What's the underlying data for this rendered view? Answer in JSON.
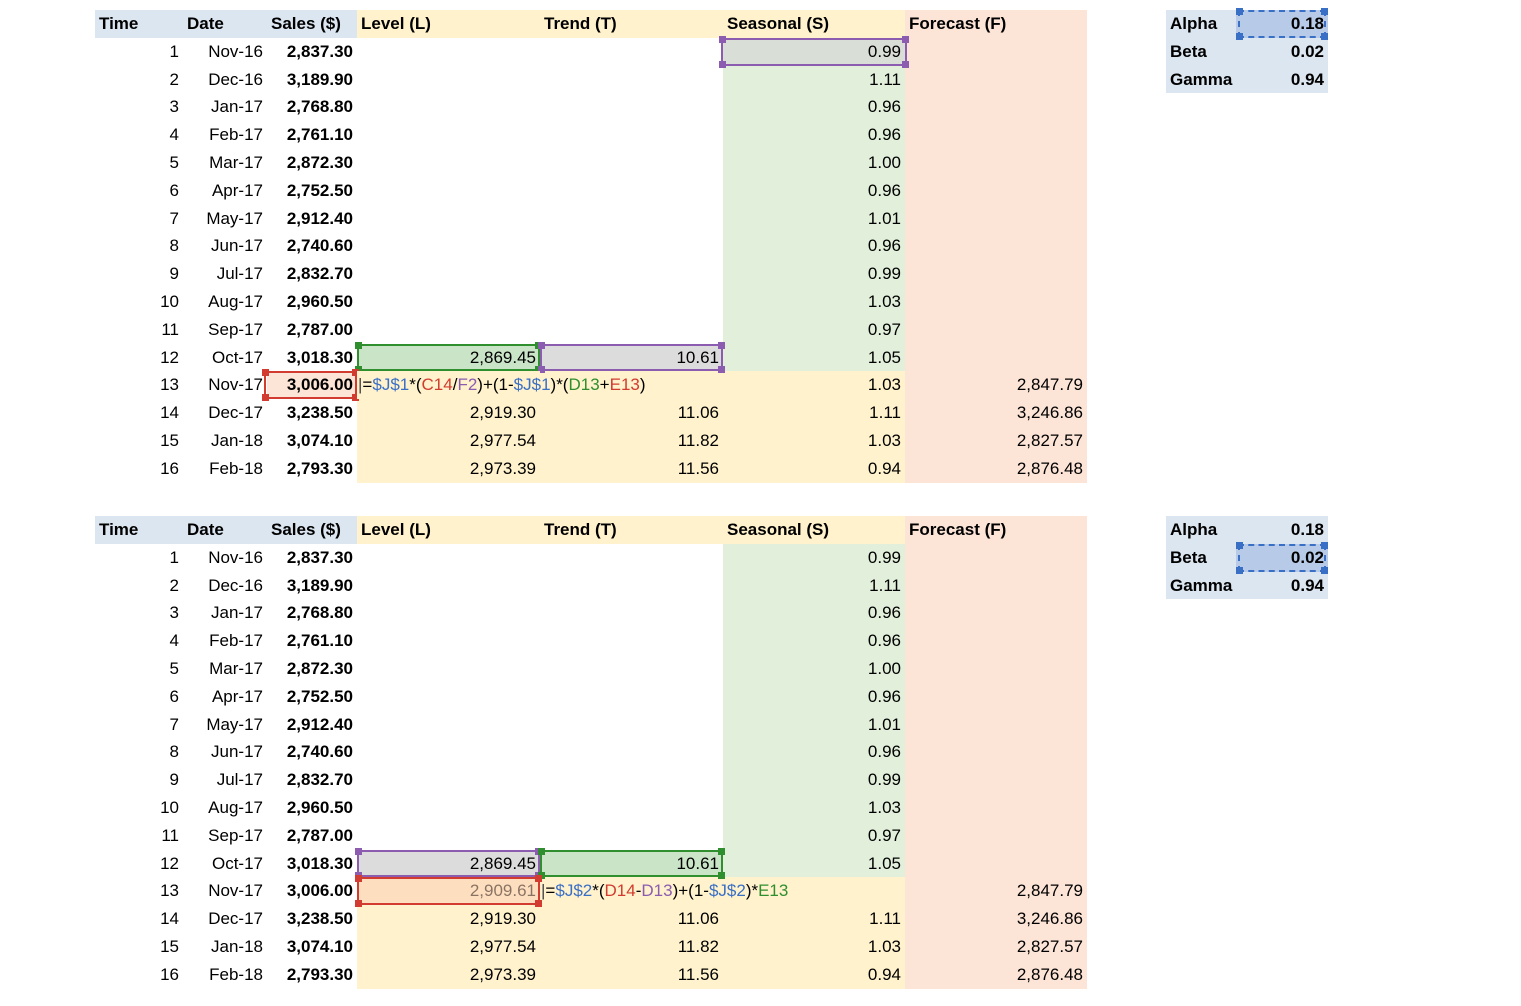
{
  "headers": {
    "time": "Time",
    "date": "Date",
    "sales": "Sales ($)",
    "level": "Level (L)",
    "trend": "Trend (T)",
    "seasonal": "Seasonal (S)",
    "forecast": "Forecast (F)"
  },
  "params": [
    {
      "label": "Alpha",
      "value": "0.18"
    },
    {
      "label": "Beta",
      "value": "0.02"
    },
    {
      "label": "Gamma",
      "value": "0.94"
    }
  ],
  "colors": {
    "header_blue": "#dce6f1",
    "level_yellow": "#fff2cc",
    "seasonal_green": "#e2efda",
    "forecast_salmon": "#fce4d6",
    "ref_blue": "#3a6fc6",
    "ref_red": "#d13b30",
    "ref_purple": "#8b5cb0",
    "ref_green": "#2f8f2f"
  },
  "sheets": [
    {
      "rows": [
        {
          "time": "1",
          "date": "Nov-16",
          "sales": "2,837.30",
          "level": "",
          "trend": "",
          "seasonal": "0.99",
          "forecast": ""
        },
        {
          "time": "2",
          "date": "Dec-16",
          "sales": "3,189.90",
          "level": "",
          "trend": "",
          "seasonal": "1.11",
          "forecast": ""
        },
        {
          "time": "3",
          "date": "Jan-17",
          "sales": "2,768.80",
          "level": "",
          "trend": "",
          "seasonal": "0.96",
          "forecast": ""
        },
        {
          "time": "4",
          "date": "Feb-17",
          "sales": "2,761.10",
          "level": "",
          "trend": "",
          "seasonal": "0.96",
          "forecast": ""
        },
        {
          "time": "5",
          "date": "Mar-17",
          "sales": "2,872.30",
          "level": "",
          "trend": "",
          "seasonal": "1.00",
          "forecast": ""
        },
        {
          "time": "6",
          "date": "Apr-17",
          "sales": "2,752.50",
          "level": "",
          "trend": "",
          "seasonal": "0.96",
          "forecast": ""
        },
        {
          "time": "7",
          "date": "May-17",
          "sales": "2,912.40",
          "level": "",
          "trend": "",
          "seasonal": "1.01",
          "forecast": ""
        },
        {
          "time": "8",
          "date": "Jun-17",
          "sales": "2,740.60",
          "level": "",
          "trend": "",
          "seasonal": "0.96",
          "forecast": ""
        },
        {
          "time": "9",
          "date": "Jul-17",
          "sales": "2,832.70",
          "level": "",
          "trend": "",
          "seasonal": "0.99",
          "forecast": ""
        },
        {
          "time": "10",
          "date": "Aug-17",
          "sales": "2,960.50",
          "level": "",
          "trend": "",
          "seasonal": "1.03",
          "forecast": ""
        },
        {
          "time": "11",
          "date": "Sep-17",
          "sales": "2,787.00",
          "level": "",
          "trend": "",
          "seasonal": "0.97",
          "forecast": ""
        },
        {
          "time": "12",
          "date": "Oct-17",
          "sales": "3,018.30",
          "level": "2,869.45",
          "trend": "10.61",
          "seasonal": "1.05",
          "forecast": ""
        },
        {
          "time": "13",
          "date": "Nov-17",
          "sales": "3,006.00",
          "level": "",
          "trend": "",
          "seasonal": "1.03",
          "forecast": "2,847.79"
        },
        {
          "time": "14",
          "date": "Dec-17",
          "sales": "3,238.50",
          "level": "2,919.30",
          "trend": "11.06",
          "seasonal": "1.11",
          "forecast": "3,246.86"
        },
        {
          "time": "15",
          "date": "Jan-18",
          "sales": "3,074.10",
          "level": "2,977.54",
          "trend": "11.82",
          "seasonal": "1.03",
          "forecast": "2,827.57"
        },
        {
          "time": "16",
          "date": "Feb-18",
          "sales": "2,793.30",
          "level": "2,973.39",
          "trend": "11.56",
          "seasonal": "0.94",
          "forecast": "2,876.48"
        }
      ],
      "formula": {
        "cell": "level-row-13",
        "tokens": [
          {
            "t": "=",
            "c": "black"
          },
          {
            "t": "$J$1",
            "c": "blue"
          },
          {
            "t": "*(",
            "c": "black"
          },
          {
            "t": "C14",
            "c": "red"
          },
          {
            "t": "/",
            "c": "black"
          },
          {
            "t": "F2",
            "c": "purple"
          },
          {
            "t": ")+(1-",
            "c": "black"
          },
          {
            "t": "$J$1",
            "c": "blue"
          },
          {
            "t": ")*(",
            "c": "black"
          },
          {
            "t": "D13",
            "c": "green"
          },
          {
            "t": "+",
            "c": "black"
          },
          {
            "t": "E13",
            "c": "red"
          },
          {
            "t": ")",
            "c": "black"
          }
        ]
      }
    },
    {
      "rows": [
        {
          "time": "1",
          "date": "Nov-16",
          "sales": "2,837.30",
          "level": "",
          "trend": "",
          "seasonal": "0.99",
          "forecast": ""
        },
        {
          "time": "2",
          "date": "Dec-16",
          "sales": "3,189.90",
          "level": "",
          "trend": "",
          "seasonal": "1.11",
          "forecast": ""
        },
        {
          "time": "3",
          "date": "Jan-17",
          "sales": "2,768.80",
          "level": "",
          "trend": "",
          "seasonal": "0.96",
          "forecast": ""
        },
        {
          "time": "4",
          "date": "Feb-17",
          "sales": "2,761.10",
          "level": "",
          "trend": "",
          "seasonal": "0.96",
          "forecast": ""
        },
        {
          "time": "5",
          "date": "Mar-17",
          "sales": "2,872.30",
          "level": "",
          "trend": "",
          "seasonal": "1.00",
          "forecast": ""
        },
        {
          "time": "6",
          "date": "Apr-17",
          "sales": "2,752.50",
          "level": "",
          "trend": "",
          "seasonal": "0.96",
          "forecast": ""
        },
        {
          "time": "7",
          "date": "May-17",
          "sales": "2,912.40",
          "level": "",
          "trend": "",
          "seasonal": "1.01",
          "forecast": ""
        },
        {
          "time": "8",
          "date": "Jun-17",
          "sales": "2,740.60",
          "level": "",
          "trend": "",
          "seasonal": "0.96",
          "forecast": ""
        },
        {
          "time": "9",
          "date": "Jul-17",
          "sales": "2,832.70",
          "level": "",
          "trend": "",
          "seasonal": "0.99",
          "forecast": ""
        },
        {
          "time": "10",
          "date": "Aug-17",
          "sales": "2,960.50",
          "level": "",
          "trend": "",
          "seasonal": "1.03",
          "forecast": ""
        },
        {
          "time": "11",
          "date": "Sep-17",
          "sales": "2,787.00",
          "level": "",
          "trend": "",
          "seasonal": "0.97",
          "forecast": ""
        },
        {
          "time": "12",
          "date": "Oct-17",
          "sales": "3,018.30",
          "level": "2,869.45",
          "trend": "10.61",
          "seasonal": "1.05",
          "forecast": ""
        },
        {
          "time": "13",
          "date": "Nov-17",
          "sales": "3,006.00",
          "level": "2,909.61",
          "trend": "",
          "seasonal": "",
          "forecast": "2,847.79"
        },
        {
          "time": "14",
          "date": "Dec-17",
          "sales": "3,238.50",
          "level": "2,919.30",
          "trend": "11.06",
          "seasonal": "1.11",
          "forecast": "3,246.86"
        },
        {
          "time": "15",
          "date": "Jan-18",
          "sales": "3,074.10",
          "level": "2,977.54",
          "trend": "11.82",
          "seasonal": "1.03",
          "forecast": "2,827.57"
        },
        {
          "time": "16",
          "date": "Feb-18",
          "sales": "2,793.30",
          "level": "2,973.39",
          "trend": "11.56",
          "seasonal": "0.94",
          "forecast": "2,876.48"
        }
      ],
      "formula": {
        "cell": "trend-row-13",
        "tokens": [
          {
            "t": "=",
            "c": "black"
          },
          {
            "t": "$J$2",
            "c": "blue"
          },
          {
            "t": "*(",
            "c": "black"
          },
          {
            "t": "D14",
            "c": "red"
          },
          {
            "t": "-",
            "c": "black"
          },
          {
            "t": "D13",
            "c": "purple"
          },
          {
            "t": ")+(1-",
            "c": "black"
          },
          {
            "t": "$J$2",
            "c": "blue"
          },
          {
            "t": ")*",
            "c": "black"
          },
          {
            "t": "E13",
            "c": "green"
          }
        ]
      }
    }
  ]
}
